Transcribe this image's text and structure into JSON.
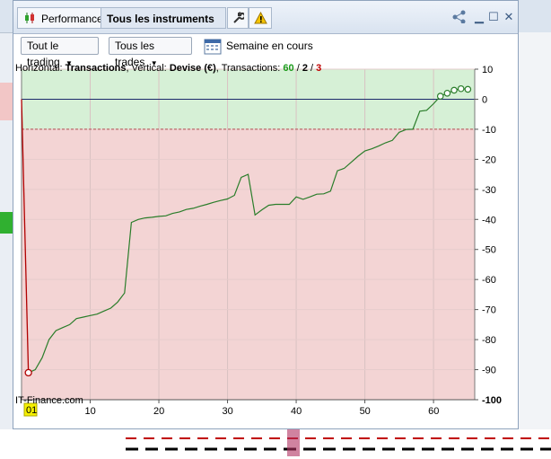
{
  "window": {
    "tabs": [
      {
        "label": "Performance",
        "icon": "candlestick-icon"
      },
      {
        "label": "Tous les instruments",
        "icon": "caret-down-icon"
      }
    ],
    "tool_icons": [
      "wrench-icon",
      "warning-icon"
    ],
    "window_buttons": [
      "share-icon",
      "minimize-icon",
      "maximize-icon",
      "close-icon"
    ]
  },
  "toolbar": {
    "filter_trading": "Tout le trading",
    "filter_trades": "Tous les trades",
    "period_label": "Semaine en cours",
    "calendar_icon": "calendar-icon"
  },
  "info": {
    "prefix_h": "Horizontal:",
    "h_value": "Transactions",
    "prefix_v": ", Vertical:",
    "v_value": "Devise (€)",
    "prefix_t": ", Transactions:",
    "t_total": "60",
    "sep1": "/",
    "t_win": "2",
    "sep2": "/",
    "t_loss": "3"
  },
  "watermark": "IT-Finance.com",
  "colors": {
    "accent_win": "#1a9a1a",
    "accent_loss": "#c00000",
    "line_green": "#2a7d2a",
    "line_red": "#b00000",
    "loss_zone": "#f3d4d4",
    "profit_zone": "#d6f0d6"
  },
  "chart_data": {
    "type": "line",
    "title": "",
    "xlabel": "Transactions",
    "ylabel": "Devise (€)",
    "xlim": [
      0,
      66
    ],
    "ylim": [
      -100,
      10
    ],
    "x_ticks": [
      10,
      20,
      30,
      40,
      50,
      60
    ],
    "x_tick_labels": [
      "10",
      "20",
      "30",
      "40",
      "50",
      "60"
    ],
    "y_ticks": [
      10,
      0,
      -10,
      -20,
      -30,
      -40,
      -50,
      -60,
      -70,
      -80,
      -90,
      -100
    ],
    "y_tick_labels": [
      "10",
      "0",
      "-10",
      "-20",
      "-30",
      "-40",
      "-50",
      "-60",
      "-70",
      "-80",
      "-90",
      "-100"
    ],
    "start_marker": "01",
    "reference_lines": [
      0,
      -10
    ],
    "series": [
      {
        "x": [
          0,
          1,
          2,
          3,
          4,
          5,
          6,
          7,
          8,
          9,
          10,
          11,
          12,
          13,
          14,
          15,
          16,
          17,
          18,
          19,
          20,
          21,
          22,
          23,
          24,
          25,
          26,
          27,
          28,
          29,
          30,
          31,
          32,
          33,
          34,
          35,
          36,
          37,
          38,
          39,
          40,
          41,
          42,
          43,
          44,
          45,
          46,
          47,
          48,
          49,
          50,
          51,
          52,
          53,
          54,
          55,
          56,
          57,
          58,
          59,
          60,
          61,
          62,
          63,
          64,
          65
        ],
        "y": [
          0,
          -91,
          -90,
          -86,
          -80,
          -77,
          -76,
          -75,
          -73,
          -72.5,
          -72,
          -71.5,
          -70.5,
          -69.5,
          -67.5,
          -64.5,
          -41,
          -40,
          -39.5,
          -39.3,
          -39,
          -38.8,
          -38,
          -37.5,
          -36.7,
          -36.3,
          -35.6,
          -35,
          -34.3,
          -33.7,
          -33.2,
          -32,
          -26,
          -25,
          -38.5,
          -36.8,
          -35.3,
          -35,
          -35,
          -35,
          -32.5,
          -33.3,
          -32.5,
          -31.6,
          -31.5,
          -30.6,
          -23.8,
          -23,
          -21,
          -19,
          -17.2,
          -16.5,
          -15.6,
          -14.5,
          -13.7,
          -11,
          -10.1,
          -10,
          -4,
          -3.7,
          -1.5,
          1,
          2,
          3,
          3.5,
          3.3
        ]
      }
    ]
  }
}
